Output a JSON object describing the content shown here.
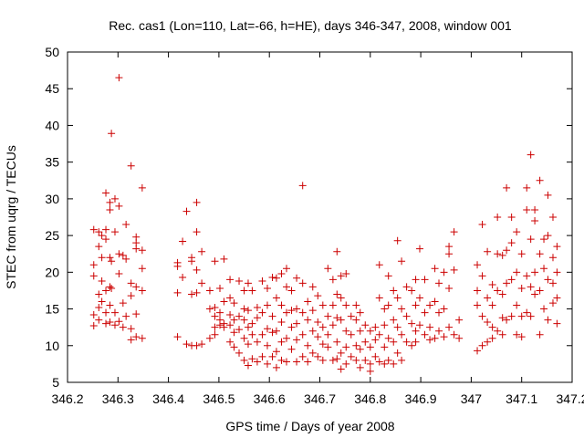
{
  "chart_data": {
    "type": "scatter",
    "title": "Rec. cas1 (Lon=110, Lat=-66, h=HE), days 346-347, 2008, window 001",
    "xlabel": "GPS time / Days of year 2008",
    "ylabel": "STEC from uqrg / TECUs",
    "xlim": [
      346.2,
      347.2
    ],
    "ylim": [
      5,
      50
    ],
    "xticks": [
      346.2,
      346.3,
      346.4,
      346.5,
      346.6,
      346.7,
      346.8,
      346.9,
      347,
      347.1,
      347.2
    ],
    "xtick_labels": [
      "346.2",
      "346.3",
      "346.4",
      "346.5",
      "346.6",
      "346.7",
      "346.8",
      "346.9",
      "347",
      "347.1",
      "347.2"
    ],
    "yticks": [
      5,
      10,
      15,
      20,
      25,
      30,
      35,
      40,
      45,
      50
    ],
    "ytick_labels": [
      "5",
      "10",
      "15",
      "20",
      "25",
      "30",
      "35",
      "40",
      "45",
      "50"
    ],
    "grid": false,
    "legend": "none",
    "marker": "plus",
    "color": "#cc0000",
    "points": [
      [
        346.252,
        25.8
      ],
      [
        346.252,
        21.0
      ],
      [
        346.252,
        19.5
      ],
      [
        346.252,
        14.2
      ],
      [
        346.252,
        12.7
      ],
      [
        346.262,
        25.5
      ],
      [
        346.262,
        23.5
      ],
      [
        346.262,
        17.0
      ],
      [
        346.262,
        15.2
      ],
      [
        346.262,
        13.5
      ],
      [
        346.268,
        25.0
      ],
      [
        346.268,
        22.0
      ],
      [
        346.268,
        18.8
      ],
      [
        346.268,
        16.0
      ],
      [
        346.276,
        30.8
      ],
      [
        346.276,
        25.8
      ],
      [
        346.276,
        24.5
      ],
      [
        346.276,
        17.5
      ],
      [
        346.276,
        14.5
      ],
      [
        346.276,
        13.0
      ],
      [
        346.284,
        29.5
      ],
      [
        346.284,
        28.5
      ],
      [
        346.284,
        22.0
      ],
      [
        346.284,
        18.0
      ],
      [
        346.284,
        15.5
      ],
      [
        346.284,
        13.2
      ],
      [
        346.287,
        38.9
      ],
      [
        346.287,
        21.5
      ],
      [
        346.287,
        17.8
      ],
      [
        346.294,
        30.0
      ],
      [
        346.294,
        25.5
      ],
      [
        346.294,
        14.5
      ],
      [
        346.294,
        12.8
      ],
      [
        346.302,
        46.5
      ],
      [
        346.302,
        29.0
      ],
      [
        346.302,
        22.5
      ],
      [
        346.302,
        19.8
      ],
      [
        346.302,
        13.3
      ],
      [
        346.31,
        22.3
      ],
      [
        346.31,
        15.8
      ],
      [
        346.31,
        12.5
      ],
      [
        346.316,
        26.5
      ],
      [
        346.316,
        21.8
      ],
      [
        346.316,
        14.0
      ],
      [
        346.326,
        34.5
      ],
      [
        346.326,
        18.5
      ],
      [
        346.326,
        16.8
      ],
      [
        346.326,
        12.3
      ],
      [
        346.326,
        10.8
      ],
      [
        346.336,
        24.8
      ],
      [
        346.336,
        24.0
      ],
      [
        346.336,
        23.2
      ],
      [
        346.336,
        18.0
      ],
      [
        346.336,
        14.3
      ],
      [
        346.336,
        11.2
      ],
      [
        346.348,
        31.5
      ],
      [
        346.348,
        23.0
      ],
      [
        346.348,
        20.5
      ],
      [
        346.348,
        17.5
      ],
      [
        346.348,
        11.0
      ],
      [
        346.418,
        21.3
      ],
      [
        346.418,
        20.8
      ],
      [
        346.418,
        17.2
      ],
      [
        346.418,
        11.2
      ],
      [
        346.428,
        24.2
      ],
      [
        346.428,
        19.3
      ],
      [
        346.436,
        28.3
      ],
      [
        346.436,
        10.2
      ],
      [
        346.446,
        22.0
      ],
      [
        346.446,
        21.5
      ],
      [
        346.446,
        17.0
      ],
      [
        346.446,
        10.0
      ],
      [
        346.456,
        29.5
      ],
      [
        346.456,
        25.5
      ],
      [
        346.456,
        20.3
      ],
      [
        346.456,
        17.2
      ],
      [
        346.456,
        10.0
      ],
      [
        346.466,
        22.8
      ],
      [
        346.466,
        18.5
      ],
      [
        346.466,
        10.2
      ],
      [
        346.482,
        17.5
      ],
      [
        346.482,
        15.0
      ],
      [
        346.482,
        11.0
      ],
      [
        346.492,
        21.5
      ],
      [
        346.492,
        15.2
      ],
      [
        346.492,
        14.0
      ],
      [
        346.492,
        12.5
      ],
      [
        346.492,
        11.5
      ],
      [
        346.502,
        17.8
      ],
      [
        346.502,
        14.5
      ],
      [
        346.502,
        13.5
      ],
      [
        346.502,
        12.8
      ],
      [
        346.51,
        21.8
      ],
      [
        346.51,
        16.0
      ],
      [
        346.51,
        13.0
      ],
      [
        346.51,
        12.5
      ],
      [
        346.522,
        19.0
      ],
      [
        346.522,
        16.5
      ],
      [
        346.522,
        14.2
      ],
      [
        346.522,
        12.8
      ],
      [
        346.522,
        10.5
      ],
      [
        346.53,
        15.8
      ],
      [
        346.53,
        13.5
      ],
      [
        346.53,
        11.8
      ],
      [
        346.53,
        9.8
      ],
      [
        346.54,
        18.8
      ],
      [
        346.54,
        14.0
      ],
      [
        346.54,
        12.2
      ],
      [
        346.54,
        9.0
      ],
      [
        346.55,
        17.5
      ],
      [
        346.55,
        15.0
      ],
      [
        346.55,
        13.5
      ],
      [
        346.55,
        11.0
      ],
      [
        346.55,
        8.0
      ],
      [
        346.558,
        18.5
      ],
      [
        346.558,
        14.8
      ],
      [
        346.558,
        12.5
      ],
      [
        346.558,
        10.2
      ],
      [
        346.558,
        7.3
      ],
      [
        346.566,
        17.5
      ],
      [
        346.566,
        13.0
      ],
      [
        346.566,
        11.5
      ],
      [
        346.566,
        8.2
      ],
      [
        346.576,
        15.2
      ],
      [
        346.576,
        13.8
      ],
      [
        346.576,
        10.5
      ],
      [
        346.576,
        7.8
      ],
      [
        346.586,
        18.8
      ],
      [
        346.586,
        14.5
      ],
      [
        346.586,
        11.5
      ],
      [
        346.586,
        8.5
      ],
      [
        346.596,
        17.8
      ],
      [
        346.596,
        15.5
      ],
      [
        346.596,
        12.3
      ],
      [
        346.596,
        10.0
      ],
      [
        346.596,
        7.5
      ],
      [
        346.606,
        19.3
      ],
      [
        346.606,
        14.0
      ],
      [
        346.606,
        11.8
      ],
      [
        346.606,
        8.5
      ],
      [
        346.614,
        19.2
      ],
      [
        346.614,
        16.5
      ],
      [
        346.614,
        12.0
      ],
      [
        346.614,
        9.2
      ],
      [
        346.614,
        7.0
      ],
      [
        346.624,
        19.8
      ],
      [
        346.624,
        15.5
      ],
      [
        346.624,
        13.2
      ],
      [
        346.624,
        10.5
      ],
      [
        346.624,
        8.0
      ],
      [
        346.634,
        20.5
      ],
      [
        346.634,
        18.0
      ],
      [
        346.634,
        14.5
      ],
      [
        346.634,
        11.0
      ],
      [
        346.634,
        7.8
      ],
      [
        346.644,
        17.5
      ],
      [
        346.644,
        14.8
      ],
      [
        346.644,
        12.5
      ],
      [
        346.644,
        9.5
      ],
      [
        346.654,
        19.2
      ],
      [
        346.654,
        15.0
      ],
      [
        346.654,
        13.0
      ],
      [
        346.654,
        10.8
      ],
      [
        346.654,
        7.8
      ],
      [
        346.666,
        31.8
      ],
      [
        346.666,
        18.5
      ],
      [
        346.666,
        14.5
      ],
      [
        346.666,
        11.5
      ],
      [
        346.666,
        8.5
      ],
      [
        346.676,
        16.0
      ],
      [
        346.676,
        13.5
      ],
      [
        346.676,
        10.0
      ],
      [
        346.676,
        7.8
      ],
      [
        346.686,
        18.0
      ],
      [
        346.686,
        14.8
      ],
      [
        346.686,
        12.0
      ],
      [
        346.686,
        9.0
      ],
      [
        346.696,
        16.8
      ],
      [
        346.696,
        13.2
      ],
      [
        346.696,
        11.2
      ],
      [
        346.696,
        8.5
      ],
      [
        346.706,
        15.5
      ],
      [
        346.706,
        12.5
      ],
      [
        346.706,
        10.2
      ],
      [
        346.706,
        8.0
      ],
      [
        346.716,
        20.5
      ],
      [
        346.716,
        14.0
      ],
      [
        346.716,
        11.5
      ],
      [
        346.716,
        9.8
      ],
      [
        346.726,
        19.0
      ],
      [
        346.726,
        15.5
      ],
      [
        346.726,
        12.8
      ],
      [
        346.726,
        8.0
      ],
      [
        346.734,
        22.8
      ],
      [
        346.734,
        17.0
      ],
      [
        346.734,
        13.8
      ],
      [
        346.734,
        10.5
      ],
      [
        346.734,
        8.2
      ],
      [
        346.742,
        19.5
      ],
      [
        346.742,
        16.5
      ],
      [
        346.742,
        13.5
      ],
      [
        346.742,
        9.0
      ],
      [
        346.742,
        6.8
      ],
      [
        346.752,
        19.8
      ],
      [
        346.752,
        15.5
      ],
      [
        346.752,
        12.0
      ],
      [
        346.752,
        9.8
      ],
      [
        346.752,
        7.5
      ],
      [
        346.762,
        14.0
      ],
      [
        346.762,
        11.5
      ],
      [
        346.762,
        8.5
      ],
      [
        346.772,
        15.5
      ],
      [
        346.772,
        13.5
      ],
      [
        346.772,
        10.0
      ],
      [
        346.772,
        8.0
      ],
      [
        346.78,
        14.5
      ],
      [
        346.78,
        12.0
      ],
      [
        346.78,
        9.5
      ],
      [
        346.78,
        7.0
      ],
      [
        346.79,
        12.8
      ],
      [
        346.79,
        10.5
      ],
      [
        346.79,
        8.0
      ],
      [
        346.8,
        12.0
      ],
      [
        346.8,
        9.8
      ],
      [
        346.8,
        7.5
      ],
      [
        346.8,
        6.5
      ],
      [
        346.81,
        12.5
      ],
      [
        346.81,
        10.8
      ],
      [
        346.81,
        8.5
      ],
      [
        346.818,
        21.0
      ],
      [
        346.818,
        16.5
      ],
      [
        346.818,
        11.5
      ],
      [
        346.818,
        7.8
      ],
      [
        346.828,
        15.0
      ],
      [
        346.828,
        12.8
      ],
      [
        346.828,
        9.8
      ],
      [
        346.828,
        7.5
      ],
      [
        346.836,
        19.5
      ],
      [
        346.836,
        15.5
      ],
      [
        346.836,
        11.0
      ],
      [
        346.836,
        8.0
      ],
      [
        346.846,
        17.5
      ],
      [
        346.846,
        13.5
      ],
      [
        346.846,
        10.5
      ],
      [
        346.846,
        7.5
      ],
      [
        346.854,
        24.3
      ],
      [
        346.854,
        16.5
      ],
      [
        346.854,
        12.5
      ],
      [
        346.854,
        9.0
      ],
      [
        346.862,
        21.5
      ],
      [
        346.862,
        15.0
      ],
      [
        346.862,
        11.5
      ],
      [
        346.862,
        8.0
      ],
      [
        346.872,
        18.0
      ],
      [
        346.872,
        14.0
      ],
      [
        346.872,
        10.5
      ],
      [
        346.882,
        17.5
      ],
      [
        346.882,
        13.0
      ],
      [
        346.882,
        10.0
      ],
      [
        346.89,
        19.0
      ],
      [
        346.89,
        15.5
      ],
      [
        346.89,
        12.0
      ],
      [
        346.89,
        10.5
      ],
      [
        346.898,
        23.2
      ],
      [
        346.898,
        16.5
      ],
      [
        346.898,
        12.8
      ],
      [
        346.908,
        19.0
      ],
      [
        346.908,
        14.5
      ],
      [
        346.908,
        11.5
      ],
      [
        346.918,
        15.5
      ],
      [
        346.918,
        12.5
      ],
      [
        346.918,
        10.8
      ],
      [
        346.928,
        20.5
      ],
      [
        346.928,
        16.0
      ],
      [
        346.928,
        11.0
      ],
      [
        346.936,
        18.5
      ],
      [
        346.936,
        14.5
      ],
      [
        346.936,
        12.0
      ],
      [
        346.946,
        20.0
      ],
      [
        346.946,
        15.0
      ],
      [
        346.946,
        11.2
      ],
      [
        346.956,
        23.5
      ],
      [
        346.956,
        22.5
      ],
      [
        346.956,
        17.8
      ],
      [
        346.956,
        12.5
      ],
      [
        346.966,
        25.5
      ],
      [
        346.966,
        20.3
      ],
      [
        346.966,
        11.5
      ],
      [
        346.976,
        13.5
      ],
      [
        346.976,
        11.0
      ],
      [
        347.012,
        21.0
      ],
      [
        347.012,
        17.5
      ],
      [
        347.012,
        15.5
      ],
      [
        347.012,
        9.3
      ],
      [
        347.022,
        26.5
      ],
      [
        347.022,
        19.5
      ],
      [
        347.022,
        14.0
      ],
      [
        347.022,
        10.0
      ],
      [
        347.032,
        22.8
      ],
      [
        347.032,
        16.5
      ],
      [
        347.032,
        13.2
      ],
      [
        347.032,
        10.5
      ],
      [
        347.042,
        18.3
      ],
      [
        347.042,
        15.5
      ],
      [
        347.042,
        12.5
      ],
      [
        347.042,
        11.0
      ],
      [
        347.052,
        27.5
      ],
      [
        347.052,
        22.5
      ],
      [
        347.052,
        17.5
      ],
      [
        347.052,
        12.0
      ],
      [
        347.062,
        22.3
      ],
      [
        347.062,
        17.0
      ],
      [
        347.062,
        13.8
      ],
      [
        347.062,
        11.5
      ],
      [
        347.07,
        31.5
      ],
      [
        347.07,
        23.0
      ],
      [
        347.07,
        18.5
      ],
      [
        347.07,
        13.5
      ],
      [
        347.08,
        27.5
      ],
      [
        347.08,
        24.0
      ],
      [
        347.08,
        19.0
      ],
      [
        347.08,
        14.0
      ],
      [
        347.09,
        25.5
      ],
      [
        347.09,
        20.0
      ],
      [
        347.09,
        15.5
      ],
      [
        347.09,
        11.5
      ],
      [
        347.1,
        22.5
      ],
      [
        347.1,
        17.8
      ],
      [
        347.1,
        14.0
      ],
      [
        347.1,
        11.2
      ],
      [
        347.11,
        31.5
      ],
      [
        347.11,
        28.5
      ],
      [
        347.11,
        19.5
      ],
      [
        347.11,
        14.5
      ],
      [
        347.118,
        36.0
      ],
      [
        347.118,
        24.5
      ],
      [
        347.118,
        18.0
      ],
      [
        347.118,
        14.0
      ],
      [
        347.126,
        28.5
      ],
      [
        347.126,
        27.0
      ],
      [
        347.126,
        20.0
      ],
      [
        347.126,
        17.0
      ],
      [
        347.136,
        32.5
      ],
      [
        347.136,
        22.5
      ],
      [
        347.136,
        17.5
      ],
      [
        347.136,
        11.5
      ],
      [
        347.144,
        24.5
      ],
      [
        347.144,
        20.5
      ],
      [
        347.144,
        15.0
      ],
      [
        347.152,
        30.5
      ],
      [
        347.152,
        25.0
      ],
      [
        347.152,
        19.0
      ],
      [
        347.152,
        13.5
      ],
      [
        347.162,
        27.5
      ],
      [
        347.162,
        22.0
      ],
      [
        347.162,
        18.5
      ],
      [
        347.162,
        15.8
      ],
      [
        347.17,
        23.5
      ],
      [
        347.17,
        20.0
      ],
      [
        347.17,
        16.5
      ],
      [
        347.17,
        13.0
      ]
    ]
  }
}
